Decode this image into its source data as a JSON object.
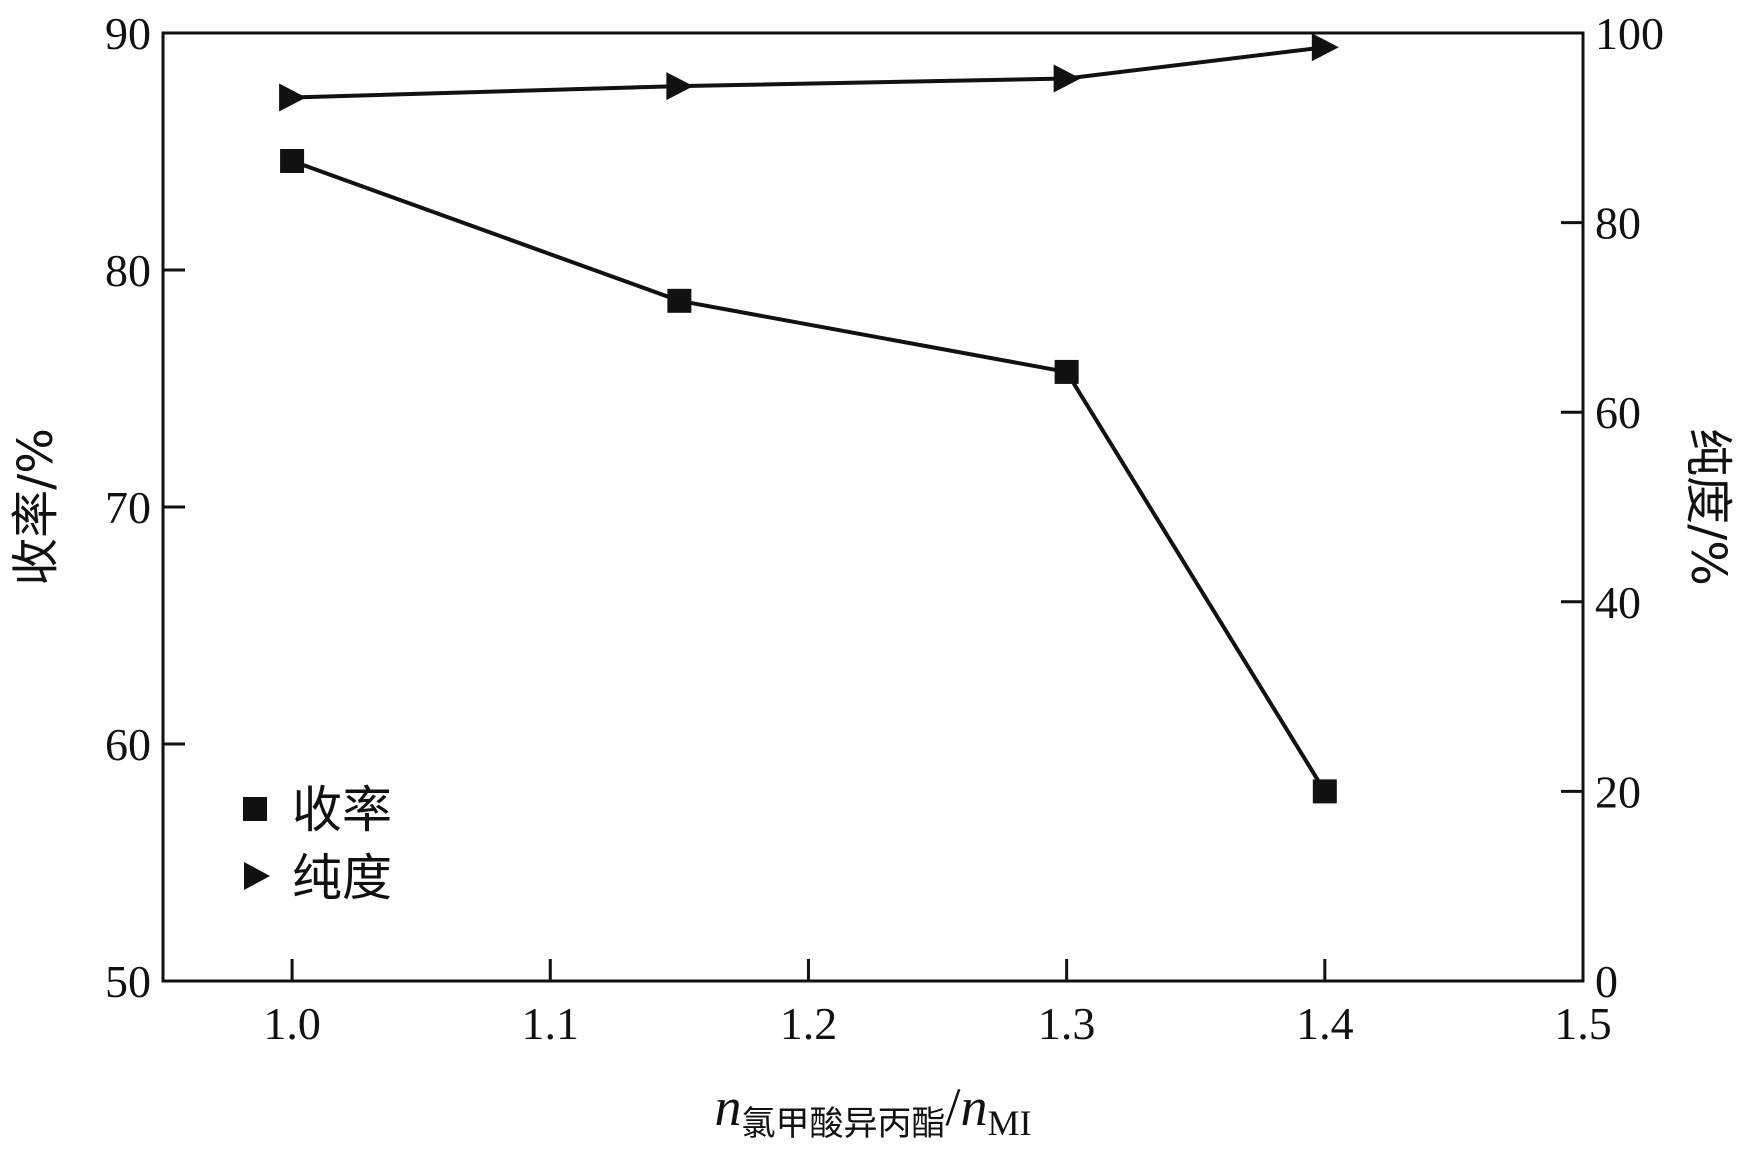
{
  "chart_data": {
    "type": "line",
    "x": [
      1.0,
      1.15,
      1.3,
      1.4
    ],
    "xlim": [
      0.95,
      1.5
    ],
    "xticks": [
      1.0,
      1.1,
      1.2,
      1.3,
      1.4,
      1.5
    ],
    "xtick_labels": [
      "1.0",
      "1.1",
      "1.2",
      "1.3",
      "1.4",
      "1.5"
    ],
    "xlabel": {
      "n1": "n",
      "sub1": "氯甲酸异丙酯",
      "slash": "/",
      "n2": "n",
      "sub2": "MI"
    },
    "ylabel": "收率/%",
    "ylim": [
      50,
      90
    ],
    "yticks": [
      50,
      60,
      70,
      80,
      90
    ],
    "ytick_labels": [
      "50",
      "60",
      "70",
      "80",
      "90"
    ],
    "y2label": "纯度/%",
    "y2lim": [
      0,
      100
    ],
    "y2ticks": [
      0,
      20,
      40,
      60,
      80,
      100
    ],
    "y2tick_labels": [
      "0",
      "20",
      "40",
      "60",
      "80",
      "100"
    ],
    "grid": false,
    "legend_position": "bottom-left",
    "series": [
      {
        "name": "收率",
        "axis": "left",
        "marker": "square",
        "color": "#111111",
        "values": [
          84.6,
          78.7,
          75.7,
          58.0
        ]
      },
      {
        "name": "纯度",
        "axis": "right",
        "marker": "triangle-right",
        "color": "#111111",
        "values": [
          93.2,
          94.4,
          95.2,
          98.5
        ]
      }
    ]
  }
}
